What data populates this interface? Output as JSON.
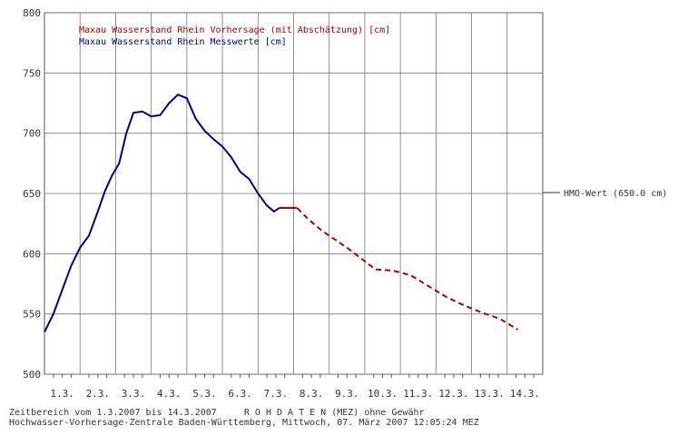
{
  "footer": {
    "line1": "Zeitbereich vom 1.3.2007 bis 14.3.2007     R O H D A T E N (MEZ) ohne Gewähr",
    "line2": "Hochwasser-Vorhersage-Zentrale Baden-Württemberg, Mittwoch, 07. März 2007 12:05:24 MEZ"
  },
  "chart_data": {
    "type": "line",
    "title": "",
    "xlabel": "",
    "ylabel": "",
    "categories": [
      "1.3.",
      "2.3.",
      "3.3.",
      "4.3.",
      "5.3.",
      "6.3.",
      "7.3.",
      "8.3.",
      "9.3.",
      "10.3.",
      "11.3.",
      "12.3.",
      "13.3.",
      "14.3."
    ],
    "xlim": [
      0.5,
      14.5
    ],
    "ylim": [
      500,
      800
    ],
    "yticks": [
      500,
      550,
      600,
      650,
      700,
      750,
      800
    ],
    "grid": true,
    "legend_position": "top-left",
    "series": [
      {
        "name": "Maxau Wasserstand Rhein Vorhersage (mit Abschätzung) [cm]",
        "color": "#aa0000",
        "style": "dashed",
        "points": [
          [
            7.1,
            638
          ],
          [
            7.6,
            638
          ],
          [
            7.9,
            629
          ],
          [
            8.3,
            619
          ],
          [
            8.7,
            611
          ],
          [
            9.0,
            605
          ],
          [
            9.4,
            596
          ],
          [
            9.8,
            587
          ],
          [
            10.3,
            586
          ],
          [
            10.8,
            582
          ],
          [
            11.3,
            573
          ],
          [
            11.8,
            564
          ],
          [
            12.3,
            557
          ],
          [
            12.8,
            551
          ],
          [
            13.3,
            546
          ],
          [
            13.8,
            537
          ]
        ]
      },
      {
        "name": "Maxau Wasserstand Rhein Messwerte [cm]",
        "color": "#00008b",
        "style": "solid",
        "points": [
          [
            0.5,
            535
          ],
          [
            0.75,
            550
          ],
          [
            1.0,
            570
          ],
          [
            1.25,
            590
          ],
          [
            1.5,
            605
          ],
          [
            1.75,
            615
          ],
          [
            2.0,
            635
          ],
          [
            2.2,
            652
          ],
          [
            2.4,
            665
          ],
          [
            2.6,
            675
          ],
          [
            2.8,
            700
          ],
          [
            3.0,
            717
          ],
          [
            3.25,
            718
          ],
          [
            3.5,
            714
          ],
          [
            3.75,
            715
          ],
          [
            4.0,
            725
          ],
          [
            4.25,
            732
          ],
          [
            4.5,
            729
          ],
          [
            4.75,
            712
          ],
          [
            5.0,
            702
          ],
          [
            5.25,
            695
          ],
          [
            5.5,
            689
          ],
          [
            5.75,
            680
          ],
          [
            6.0,
            668
          ],
          [
            6.25,
            662
          ],
          [
            6.5,
            650
          ],
          [
            6.75,
            640
          ],
          [
            6.95,
            635
          ],
          [
            7.1,
            638
          ]
        ]
      }
    ],
    "reference_line": {
      "label": "HMO-Wert (650.0 cm)",
      "value": 650
    }
  }
}
